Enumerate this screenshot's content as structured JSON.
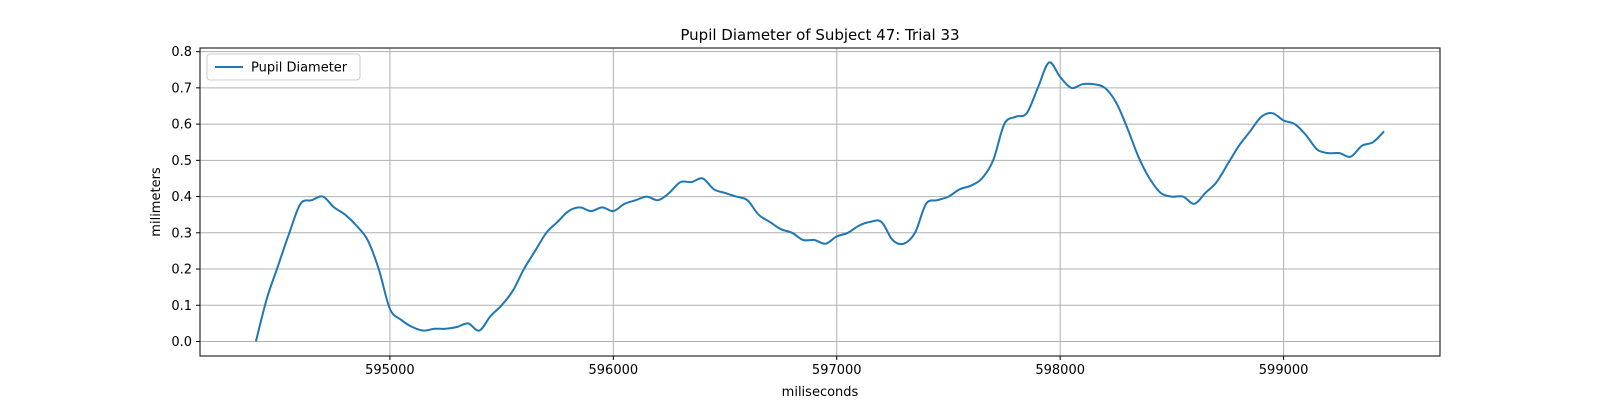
{
  "chart_data": {
    "type": "line",
    "title": "Pupil Diameter of Subject 47: Trial 33",
    "xlabel": "miliseconds",
    "ylabel": "milimeters",
    "xlim": [
      594150,
      599700
    ],
    "ylim": [
      -0.04,
      0.81
    ],
    "xticks": [
      595000,
      596000,
      597000,
      598000,
      599000
    ],
    "yticks": [
      0.0,
      0.1,
      0.2,
      0.3,
      0.4,
      0.5,
      0.6,
      0.7,
      0.8
    ],
    "grid": true,
    "legend_position": "upper-left",
    "series": [
      {
        "name": "Pupil Diameter",
        "color": "#1f77b4",
        "x": [
          594400,
          594450,
          594500,
          594550,
          594600,
          594650,
          594700,
          594750,
          594800,
          594850,
          594900,
          594950,
          595000,
          595050,
          595100,
          595150,
          595200,
          595250,
          595300,
          595350,
          595400,
          595450,
          595500,
          595550,
          595600,
          595650,
          595700,
          595750,
          595800,
          595850,
          595900,
          595950,
          596000,
          596050,
          596100,
          596150,
          596200,
          596250,
          596300,
          596350,
          596400,
          596450,
          596500,
          596550,
          596600,
          596650,
          596700,
          596750,
          596800,
          596850,
          596900,
          596950,
          597000,
          597050,
          597100,
          597150,
          597200,
          597250,
          597300,
          597350,
          597400,
          597450,
          597500,
          597550,
          597600,
          597650,
          597700,
          597750,
          597800,
          597850,
          597900,
          597950,
          598000,
          598050,
          598100,
          598150,
          598200,
          598250,
          598300,
          598350,
          598400,
          598450,
          598500,
          598550,
          598600,
          598650,
          598700,
          598750,
          598800,
          598850,
          598900,
          598950,
          599000,
          599050,
          599100,
          599150,
          599200,
          599250,
          599300,
          599350,
          599400,
          599450
        ],
        "y": [
          0.0,
          0.12,
          0.21,
          0.3,
          0.38,
          0.39,
          0.4,
          0.37,
          0.35,
          0.32,
          0.28,
          0.2,
          0.09,
          0.06,
          0.04,
          0.03,
          0.035,
          0.035,
          0.04,
          0.05,
          0.03,
          0.07,
          0.1,
          0.14,
          0.2,
          0.25,
          0.3,
          0.33,
          0.36,
          0.37,
          0.36,
          0.37,
          0.36,
          0.38,
          0.39,
          0.4,
          0.39,
          0.41,
          0.44,
          0.44,
          0.45,
          0.42,
          0.41,
          0.4,
          0.39,
          0.35,
          0.33,
          0.31,
          0.3,
          0.28,
          0.28,
          0.27,
          0.29,
          0.3,
          0.32,
          0.33,
          0.33,
          0.28,
          0.27,
          0.3,
          0.38,
          0.39,
          0.4,
          0.42,
          0.43,
          0.45,
          0.5,
          0.6,
          0.62,
          0.63,
          0.7,
          0.77,
          0.73,
          0.7,
          0.71,
          0.71,
          0.7,
          0.66,
          0.59,
          0.51,
          0.45,
          0.41,
          0.4,
          0.4,
          0.38,
          0.41,
          0.44,
          0.49,
          0.54,
          0.58,
          0.62,
          0.63,
          0.61,
          0.6,
          0.57,
          0.53,
          0.52,
          0.52,
          0.51,
          0.54,
          0.55,
          0.58
        ]
      }
    ]
  }
}
